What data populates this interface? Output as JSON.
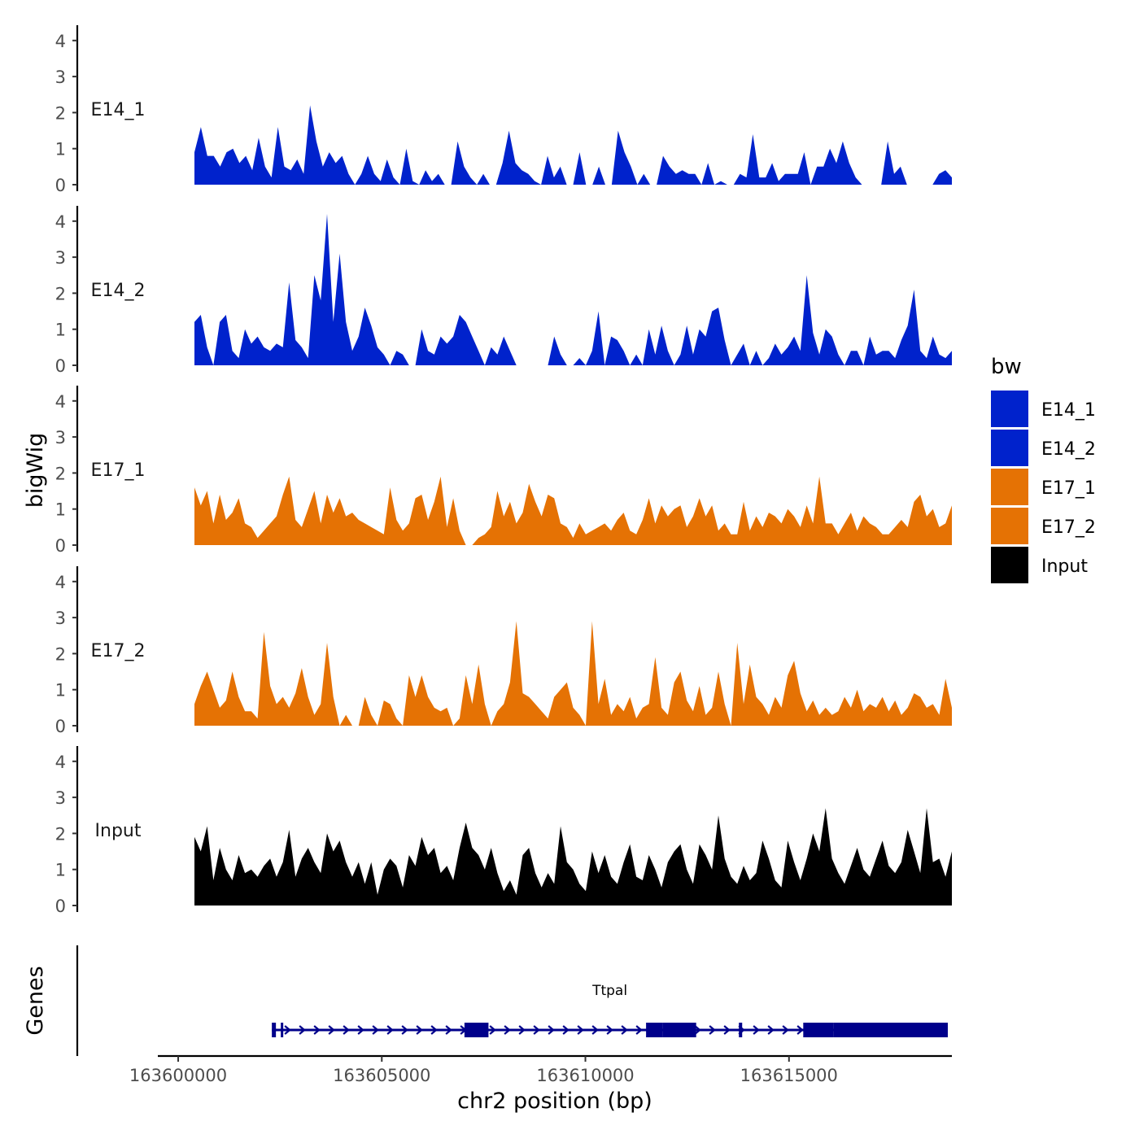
{
  "chart_data": {
    "type": "area",
    "title": "",
    "chromosome": "chr2",
    "xlabel": "chr2 position (bp)",
    "ylabel": "bigWig",
    "genes_label": "Genes",
    "xlim": [
      163599500,
      163619000
    ],
    "x_ticks": [
      163600000,
      163605000,
      163610000,
      163615000
    ],
    "x_tick_labels": [
      "163600000",
      "163605000",
      "163610000",
      "163615000"
    ],
    "ylim": [
      0,
      4.3
    ],
    "y_ticks": [
      0,
      1,
      2,
      3,
      4
    ],
    "legend": {
      "title": "bw",
      "entries": [
        {
          "name": "E14_1",
          "color": "#0022CC"
        },
        {
          "name": "E14_2",
          "color": "#0022CC"
        },
        {
          "name": "E17_1",
          "color": "#E57204"
        },
        {
          "name": "E17_2",
          "color": "#E57204"
        },
        {
          "name": "Input",
          "color": "#000000"
        }
      ]
    },
    "series": [
      {
        "name": "E14_1",
        "color": "#0022CC",
        "x_start": 163600400,
        "x_end": 163619000,
        "values": [
          0.9,
          1.6,
          0.8,
          0.8,
          0.5,
          0.9,
          1.0,
          0.6,
          0.8,
          0.4,
          1.3,
          0.5,
          0.2,
          1.6,
          0.5,
          0.4,
          0.7,
          0.3,
          2.2,
          1.2,
          0.5,
          0.9,
          0.6,
          0.8,
          0.3,
          0.0,
          0.3,
          0.8,
          0.3,
          0.1,
          0.7,
          0.2,
          0.0,
          1.0,
          0.1,
          0.0,
          0.4,
          0.1,
          0.3,
          0.0,
          0.0,
          1.2,
          0.5,
          0.2,
          0.0,
          0.3,
          0.0,
          0.0,
          0.6,
          1.5,
          0.6,
          0.4,
          0.3,
          0.1,
          0.0,
          0.8,
          0.2,
          0.5,
          0.0,
          0.0,
          0.9,
          0.0,
          0.0,
          0.5,
          0.0,
          0.0,
          1.5,
          0.9,
          0.5,
          0.0,
          0.3,
          0.0,
          0.0,
          0.8,
          0.5,
          0.3,
          0.4,
          0.3,
          0.3,
          0.0,
          0.6,
          0.0,
          0.1,
          0.0,
          0.0,
          0.3,
          0.2,
          1.4,
          0.2,
          0.2,
          0.6,
          0.1,
          0.3,
          0.3,
          0.3,
          0.9,
          0.0,
          0.5,
          0.5,
          1.0,
          0.6,
          1.2,
          0.6,
          0.2,
          0.0,
          0.0,
          0.0,
          0.0,
          1.2,
          0.3,
          0.5,
          0.0,
          0.0,
          0.0,
          0.0,
          0.0,
          0.3,
          0.4,
          0.2
        ]
      },
      {
        "name": "E14_2",
        "color": "#0022CC",
        "x_start": 163600400,
        "x_end": 163619000,
        "values": [
          1.2,
          1.4,
          0.5,
          0.0,
          1.2,
          1.4,
          0.4,
          0.2,
          1.0,
          0.6,
          0.8,
          0.5,
          0.4,
          0.6,
          0.5,
          2.3,
          0.7,
          0.5,
          0.2,
          2.5,
          1.8,
          4.2,
          1.2,
          3.1,
          1.2,
          0.4,
          0.8,
          1.6,
          1.1,
          0.5,
          0.3,
          0.0,
          0.4,
          0.3,
          0.0,
          0.0,
          1.0,
          0.4,
          0.3,
          0.8,
          0.6,
          0.8,
          1.4,
          1.2,
          0.8,
          0.4,
          0.0,
          0.5,
          0.3,
          0.8,
          0.4,
          0.0,
          0.0,
          0.0,
          0.0,
          0.0,
          0.0,
          0.8,
          0.3,
          0.0,
          0.0,
          0.2,
          0.0,
          0.4,
          1.5,
          0.0,
          0.8,
          0.7,
          0.4,
          0.0,
          0.3,
          0.0,
          1.0,
          0.3,
          1.1,
          0.4,
          0.0,
          0.3,
          1.1,
          0.3,
          1.0,
          0.8,
          1.5,
          1.6,
          0.7,
          0.0,
          0.3,
          0.6,
          0.0,
          0.4,
          0.0,
          0.2,
          0.6,
          0.3,
          0.5,
          0.8,
          0.4,
          2.5,
          0.9,
          0.3,
          1.0,
          0.8,
          0.3,
          0.0,
          0.4,
          0.4,
          0.0,
          0.8,
          0.3,
          0.4,
          0.4,
          0.2,
          0.7,
          1.1,
          2.1,
          0.4,
          0.2,
          0.8,
          0.3,
          0.2,
          0.4
        ]
      },
      {
        "name": "E17_1",
        "color": "#E57204",
        "x_start": 163600400,
        "x_end": 163619000,
        "values": [
          1.6,
          1.1,
          1.5,
          0.6,
          1.4,
          0.7,
          0.9,
          1.3,
          0.6,
          0.5,
          0.2,
          0.4,
          0.6,
          0.8,
          1.4,
          1.9,
          0.7,
          0.5,
          1.0,
          1.5,
          0.6,
          1.4,
          0.9,
          1.3,
          0.8,
          0.9,
          0.7,
          0.6,
          0.5,
          0.4,
          0.3,
          1.6,
          0.7,
          0.4,
          0.6,
          1.3,
          1.4,
          0.7,
          1.2,
          1.9,
          0.5,
          1.3,
          0.4,
          0.0,
          0.0,
          0.2,
          0.3,
          0.5,
          1.5,
          0.8,
          1.2,
          0.6,
          0.9,
          1.7,
          1.2,
          0.8,
          1.4,
          1.3,
          0.6,
          0.5,
          0.2,
          0.6,
          0.3,
          0.4,
          0.5,
          0.6,
          0.4,
          0.7,
          0.9,
          0.4,
          0.3,
          0.7,
          1.3,
          0.6,
          1.1,
          0.8,
          1.0,
          1.1,
          0.5,
          0.8,
          1.3,
          0.8,
          1.1,
          0.4,
          0.6,
          0.3,
          0.3,
          1.2,
          0.4,
          0.8,
          0.5,
          0.9,
          0.8,
          0.6,
          1.0,
          0.8,
          0.5,
          1.1,
          0.6,
          1.9,
          0.6,
          0.6,
          0.3,
          0.6,
          0.9,
          0.4,
          0.8,
          0.6,
          0.5,
          0.3,
          0.3,
          0.5,
          0.7,
          0.5,
          1.2,
          1.4,
          0.8,
          1.0,
          0.5,
          0.6,
          1.1
        ]
      },
      {
        "name": "E17_2",
        "color": "#E57204",
        "x_start": 163600400,
        "x_end": 163619000,
        "values": [
          0.6,
          1.1,
          1.5,
          1.0,
          0.5,
          0.7,
          1.5,
          0.8,
          0.4,
          0.4,
          0.2,
          2.6,
          1.1,
          0.6,
          0.8,
          0.5,
          0.9,
          1.6,
          0.8,
          0.3,
          0.6,
          2.3,
          0.8,
          0.0,
          0.3,
          0.0,
          0.0,
          0.8,
          0.3,
          0.0,
          0.7,
          0.6,
          0.2,
          0.0,
          1.4,
          0.8,
          1.4,
          0.8,
          0.5,
          0.4,
          0.5,
          0.0,
          0.2,
          1.4,
          0.6,
          1.7,
          0.6,
          0.0,
          0.4,
          0.6,
          1.2,
          2.9,
          0.9,
          0.8,
          0.6,
          0.4,
          0.2,
          0.8,
          1.0,
          1.2,
          0.5,
          0.3,
          0.0,
          2.9,
          0.6,
          1.3,
          0.3,
          0.6,
          0.4,
          0.8,
          0.2,
          0.5,
          0.6,
          1.9,
          0.5,
          0.3,
          1.2,
          1.5,
          0.7,
          0.4,
          1.1,
          0.3,
          0.5,
          1.5,
          0.6,
          0.0,
          2.3,
          0.6,
          1.7,
          0.8,
          0.6,
          0.3,
          0.8,
          0.5,
          1.4,
          1.8,
          0.9,
          0.4,
          0.7,
          0.3,
          0.5,
          0.3,
          0.4,
          0.8,
          0.5,
          1.0,
          0.4,
          0.6,
          0.5,
          0.8,
          0.4,
          0.7,
          0.3,
          0.5,
          0.9,
          0.8,
          0.5,
          0.6,
          0.3,
          1.3,
          0.5
        ]
      },
      {
        "name": "Input",
        "color": "#000000",
        "x_start": 163600400,
        "x_end": 163619000,
        "values": [
          1.9,
          1.5,
          2.2,
          0.7,
          1.6,
          1.0,
          0.7,
          1.4,
          0.9,
          1.0,
          0.8,
          1.1,
          1.3,
          0.8,
          1.2,
          2.1,
          0.8,
          1.3,
          1.6,
          1.2,
          0.9,
          2.0,
          1.5,
          1.8,
          1.2,
          0.8,
          1.2,
          0.6,
          1.2,
          0.3,
          1.0,
          1.3,
          1.1,
          0.5,
          1.4,
          1.1,
          1.9,
          1.4,
          1.6,
          0.9,
          1.1,
          0.7,
          1.6,
          2.3,
          1.6,
          1.4,
          1.0,
          1.6,
          0.9,
          0.4,
          0.7,
          0.3,
          1.4,
          1.6,
          0.9,
          0.5,
          0.9,
          0.6,
          2.2,
          1.2,
          1.0,
          0.6,
          0.4,
          1.5,
          0.9,
          1.4,
          0.8,
          0.6,
          1.2,
          1.7,
          0.8,
          0.7,
          1.4,
          1.0,
          0.5,
          1.2,
          1.5,
          1.7,
          1.0,
          0.6,
          1.7,
          1.4,
          1.0,
          2.5,
          1.3,
          0.8,
          0.6,
          1.1,
          0.7,
          0.9,
          1.8,
          1.3,
          0.7,
          0.5,
          1.8,
          1.2,
          0.7,
          1.3,
          2.0,
          1.5,
          2.7,
          1.3,
          0.9,
          0.6,
          1.1,
          1.6,
          1.0,
          0.8,
          1.3,
          1.8,
          1.1,
          0.9,
          1.2,
          2.1,
          1.5,
          0.9,
          2.7,
          1.2,
          1.3,
          0.8,
          1.5
        ]
      }
    ],
    "genes": [
      {
        "name": "Ttpal",
        "strand": "+",
        "start": 163602300,
        "end": 163618900,
        "exons": [
          [
            163602300,
            163602400
          ],
          [
            163602520,
            163602560
          ],
          [
            163607030,
            163607620
          ],
          [
            163611490,
            163611900
          ],
          [
            163611900,
            163612720
          ],
          [
            163613770,
            163613850
          ],
          [
            163615350,
            163616100
          ],
          [
            163616100,
            163618900
          ]
        ]
      }
    ]
  }
}
